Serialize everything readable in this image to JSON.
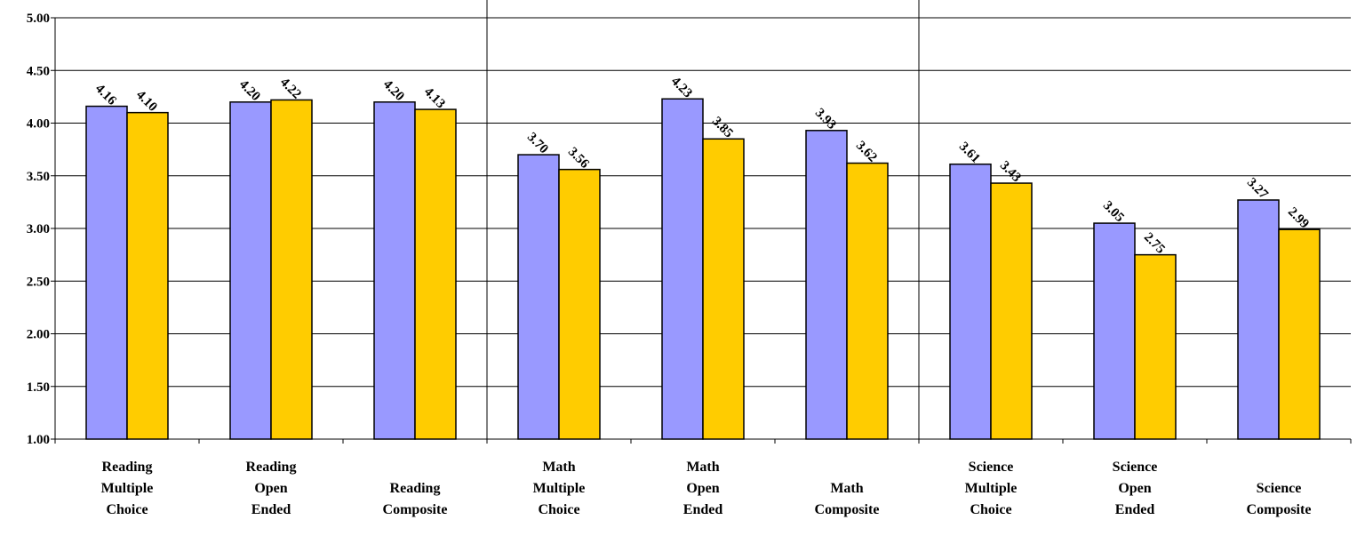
{
  "chart_data": {
    "type": "bar",
    "title": "",
    "xlabel": "",
    "ylabel": "",
    "ylim": [
      1.0,
      5.0
    ],
    "yticks": [
      "1.00",
      "1.50",
      "2.00",
      "2.50",
      "3.00",
      "3.50",
      "4.00",
      "4.50",
      "5.00"
    ],
    "grid": true,
    "legend": "none",
    "categories": [
      [
        "Reading",
        "Multiple",
        "Choice"
      ],
      [
        "Reading",
        "Open",
        "Ended"
      ],
      [
        "Reading",
        "Composite"
      ],
      [
        "Math",
        "Multiple",
        "Choice"
      ],
      [
        "Math",
        "Open",
        "Ended"
      ],
      [
        "Math",
        "Composite"
      ],
      [
        "Science",
        "Multiple",
        "Choice"
      ],
      [
        "Science",
        "Open",
        "Ended"
      ],
      [
        "Science",
        "Composite"
      ]
    ],
    "group_separators_after": [
      2,
      5
    ],
    "series": [
      {
        "color": "#9999ff",
        "values": [
          4.16,
          4.2,
          4.2,
          3.7,
          4.23,
          3.93,
          3.61,
          3.05,
          3.27
        ],
        "labels": [
          "4.16",
          "4.20",
          "4.20",
          "3.70",
          "4.23",
          "3.93",
          "3.61",
          "3.05",
          "3.27"
        ]
      },
      {
        "color": "#ffcc00",
        "values": [
          4.1,
          4.22,
          4.13,
          3.56,
          3.85,
          3.62,
          3.43,
          2.75,
          2.99
        ],
        "labels": [
          "4.10",
          "4.22",
          "4.13",
          "3.56",
          "3.85",
          "3.62",
          "3.43",
          "2.75",
          "2.99"
        ]
      }
    ]
  }
}
